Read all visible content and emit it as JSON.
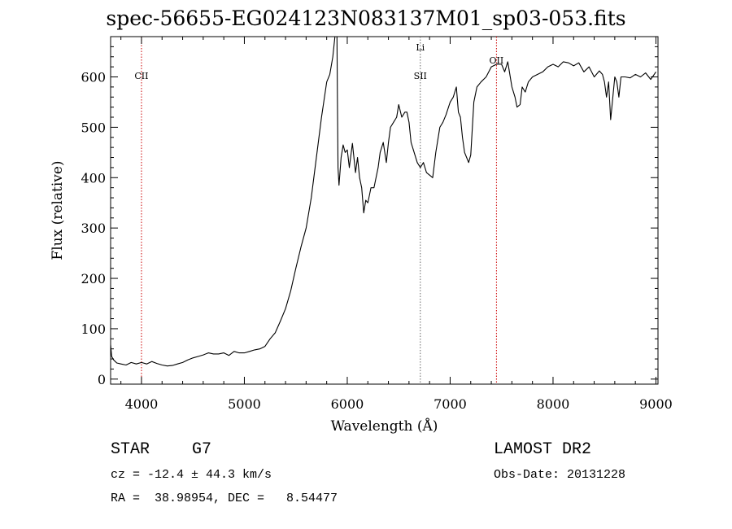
{
  "title": "spec-56655-EG024123N083137M01_sp03-053.fits",
  "info": {
    "object_class": "STAR",
    "subclass": "G7",
    "survey": "LAMOST DR2",
    "cz": "cz = -12.4 ± 44.3 km/s",
    "obs_date": "Obs-Date: 20131228",
    "radec": "RA =  38.98954, DEC =   8.54477"
  },
  "chart_data": {
    "type": "line",
    "title": "spec-56655-EG024123N083137M01_sp03-053.fits",
    "xlabel": "Wavelength (Å)",
    "ylabel": "Flux (relative)",
    "xlim": [
      3700,
      9020
    ],
    "ylim": [
      -10,
      680
    ],
    "xticks": [
      4000,
      5000,
      6000,
      7000,
      8000,
      9000
    ],
    "yticks": [
      0,
      100,
      200,
      300,
      400,
      500,
      600
    ],
    "grid": false,
    "line_color": "#000000",
    "marker_color": "#cc0000",
    "spectral_lines": [
      {
        "label": "CII",
        "wavelength": 4000
      },
      {
        "label": "Li",
        "wavelength": 6710
      },
      {
        "label": "SII",
        "wavelength": 6710
      },
      {
        "label": "OII",
        "wavelength": 7450
      }
    ],
    "series": [
      {
        "x": [
          3700,
          3710,
          3730,
          3760,
          3800,
          3850,
          3900,
          3950,
          4000,
          4050,
          4100,
          4150,
          4200,
          4250,
          4300,
          4350,
          4400,
          4450,
          4500,
          4550,
          4600,
          4650,
          4700,
          4750,
          4800,
          4850,
          4900,
          4950,
          5000,
          5050,
          5100,
          5150,
          5200,
          5250,
          5300,
          5350,
          5400,
          5450,
          5500,
          5550,
          5600,
          5650,
          5700,
          5750,
          5800,
          5830,
          5860,
          5880,
          5900,
          5905,
          5910,
          5920,
          5940,
          5960,
          5980,
          6000,
          6020,
          6050,
          6080,
          6100,
          6120,
          6140,
          6160,
          6180,
          6200,
          6230,
          6260,
          6300,
          6320,
          6350,
          6380,
          6400,
          6420,
          6450,
          6480,
          6500,
          6530,
          6560,
          6580,
          6600,
          6620,
          6650,
          6680,
          6710,
          6740,
          6770,
          6800,
          6830,
          6860,
          6900,
          6930,
          6960,
          7000,
          7030,
          7060,
          7080,
          7100,
          7120,
          7140,
          7160,
          7180,
          7200,
          7230,
          7260,
          7300,
          7350,
          7400,
          7450,
          7500,
          7530,
          7560,
          7600,
          7630,
          7650,
          7680,
          7700,
          7730,
          7760,
          7800,
          7850,
          7900,
          7950,
          8000,
          8050,
          8100,
          8150,
          8200,
          8250,
          8300,
          8350,
          8400,
          8450,
          8480,
          8500,
          8520,
          8540,
          8560,
          8600,
          8620,
          8640,
          8660,
          8700,
          8750,
          8800,
          8850,
          8900,
          8950,
          9000
        ],
        "y": [
          68,
          45,
          38,
          32,
          30,
          28,
          33,
          30,
          33,
          30,
          35,
          31,
          28,
          26,
          27,
          30,
          33,
          38,
          42,
          45,
          48,
          52,
          50,
          50,
          52,
          47,
          55,
          52,
          52,
          55,
          58,
          60,
          65,
          80,
          92,
          115,
          140,
          175,
          220,
          262,
          300,
          360,
          440,
          520,
          590,
          605,
          640,
          680,
          680,
          550,
          420,
          385,
          440,
          465,
          450,
          455,
          420,
          468,
          410,
          440,
          400,
          380,
          330,
          355,
          350,
          380,
          380,
          420,
          450,
          470,
          430,
          470,
          500,
          510,
          520,
          545,
          520,
          530,
          530,
          510,
          470,
          450,
          430,
          420,
          430,
          410,
          405,
          400,
          450,
          500,
          510,
          525,
          550,
          560,
          580,
          530,
          520,
          480,
          450,
          440,
          430,
          445,
          550,
          580,
          590,
          600,
          620,
          625,
          625,
          610,
          630,
          580,
          560,
          540,
          545,
          580,
          570,
          590,
          600,
          605,
          610,
          620,
          625,
          620,
          630,
          628,
          622,
          628,
          610,
          620,
          600,
          612,
          605,
          590,
          560,
          590,
          515,
          600,
          590,
          560,
          600,
          600,
          598,
          605,
          600,
          608,
          595,
          610
        ]
      }
    ]
  }
}
